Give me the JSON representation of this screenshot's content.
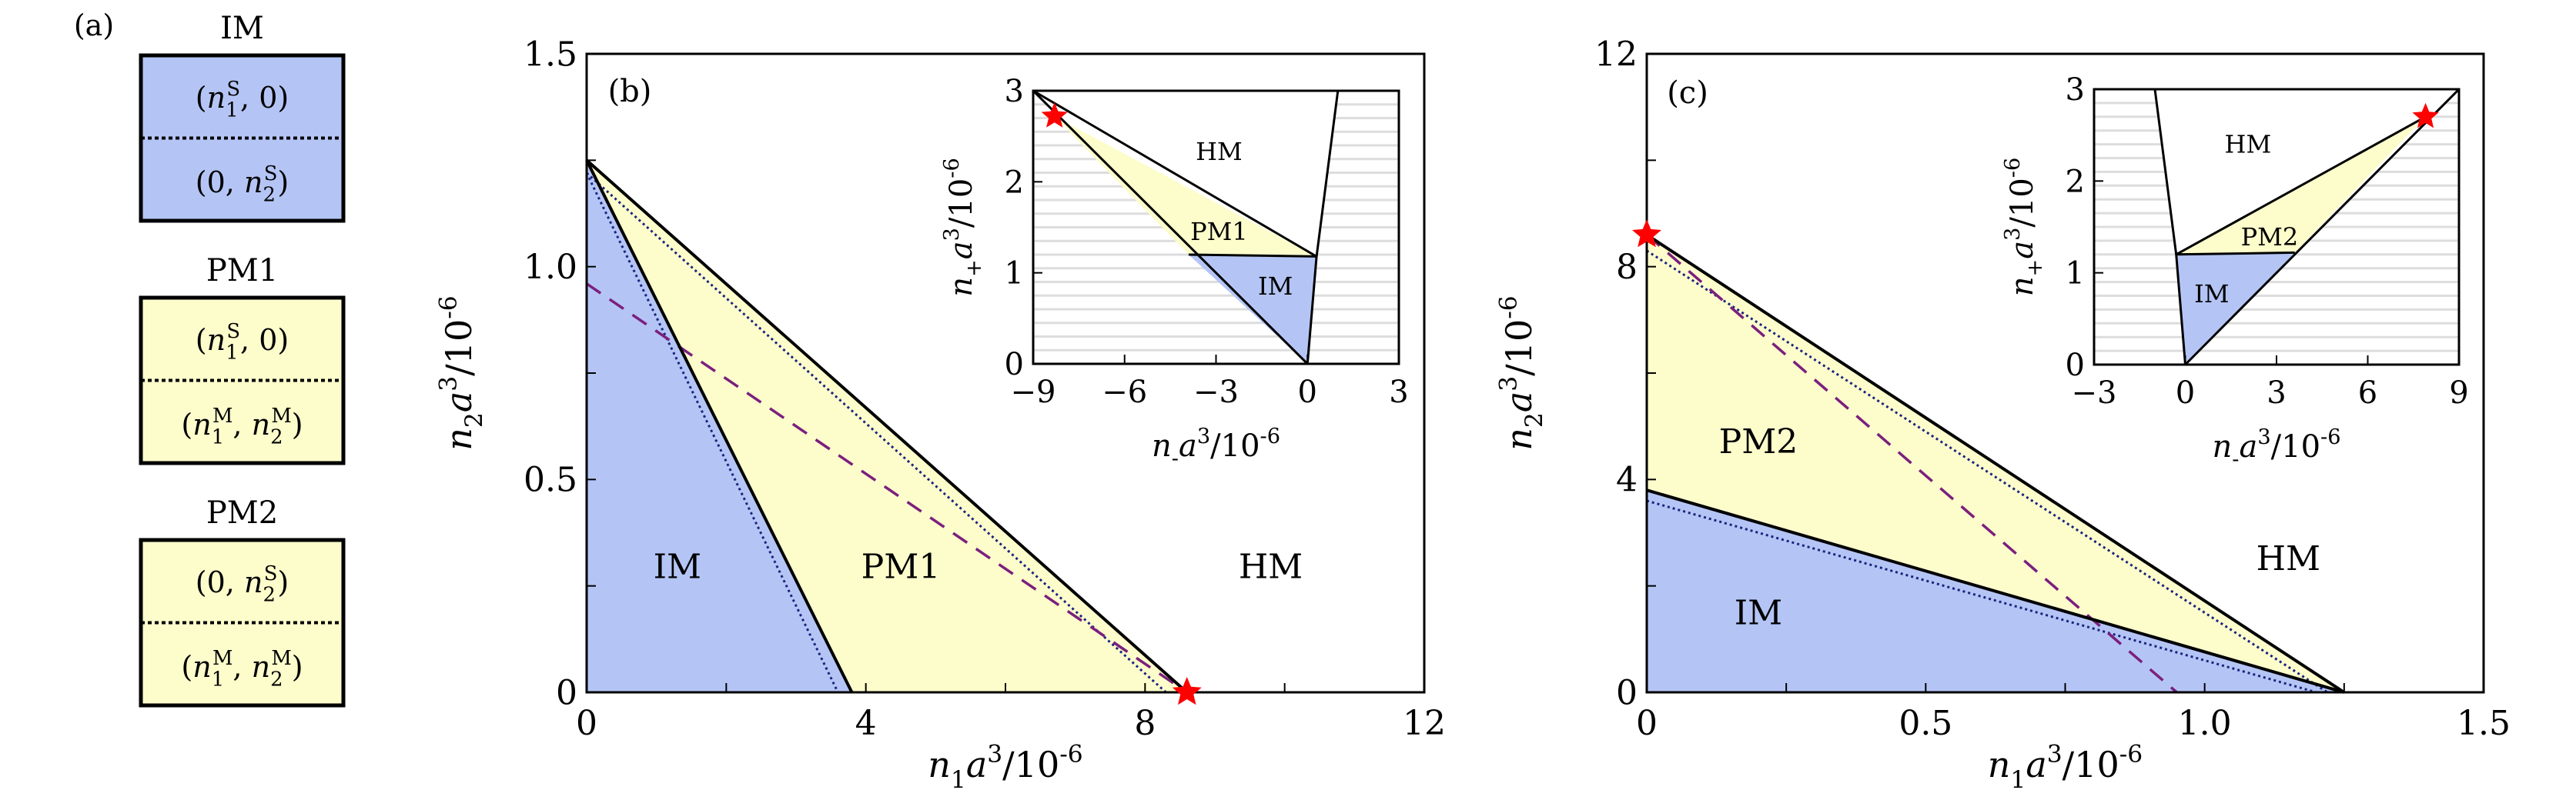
{
  "colors": {
    "im": "#b4c5f5",
    "pm": "#fdfdcc",
    "line": "#000000",
    "dotted": "#1a237e",
    "dashed": "#7b1f7e",
    "star": "#ff0000",
    "stripe": "#dddddd"
  },
  "panel_a": {
    "label": "(a)",
    "boxes": [
      {
        "title": "IM",
        "top": "(n_1^S, 0)",
        "bottom": "(0, n_2^S)",
        "fill": "im"
      },
      {
        "title": "PM1",
        "top": "(n_1^S, 0)",
        "bottom": "(n_1^M, n_2^M)",
        "fill": "pm"
      },
      {
        "title": "PM2",
        "top": "(0, n_2^S)",
        "bottom": "(n_1^M, n_2^M)",
        "fill": "pm"
      }
    ]
  },
  "chart_data": [
    {
      "panel_label": "(b)",
      "type": "line",
      "xlabel": "n_1a^3/10^{-6}",
      "ylabel": "n_2a^3/10^{-6}",
      "xlim": [
        0,
        12
      ],
      "ylim": [
        0,
        1.5
      ],
      "xticks": [
        "0",
        "4",
        "8",
        "12"
      ],
      "xtick_values": [
        0,
        4,
        8,
        12
      ],
      "xminor": [
        2,
        6,
        10
      ],
      "yticks": [
        "0",
        "0.5",
        "1.0",
        "1.5"
      ],
      "ytick_values": [
        0,
        0.5,
        1.0,
        1.5
      ],
      "yminor": [
        0.25,
        0.75,
        1.25
      ],
      "regions": [
        {
          "name": "IM",
          "fill": "im",
          "points": [
            [
              0,
              0
            ],
            [
              0,
              1.25
            ],
            [
              3.8,
              0
            ]
          ]
        },
        {
          "name": "PM1",
          "fill": "pm",
          "points": [
            [
              0,
              1.25
            ],
            [
              3.8,
              0
            ],
            [
              8.6,
              0
            ]
          ]
        }
      ],
      "region_labels": [
        {
          "text": "IM",
          "x": 1.3,
          "y": 0.29
        },
        {
          "text": "PM1",
          "x": 4.5,
          "y": 0.29
        },
        {
          "text": "HM",
          "x": 9.8,
          "y": 0.29
        }
      ],
      "lines": [
        {
          "style": "dotted",
          "points": [
            [
              0,
              1.22
            ],
            [
              3.6,
              0
            ]
          ]
        },
        {
          "style": "dotted",
          "points": [
            [
              0,
              1.22
            ],
            [
              8.3,
              0
            ]
          ]
        },
        {
          "style": "dashed",
          "points": [
            [
              0,
              0.96
            ],
            [
              8.6,
              0
            ]
          ]
        },
        {
          "style": "solid",
          "points": [
            [
              0,
              1.25
            ],
            [
              3.8,
              0
            ]
          ]
        },
        {
          "style": "solid",
          "points": [
            [
              0,
              1.25
            ],
            [
              8.6,
              0
            ]
          ]
        }
      ],
      "stars": [
        [
          8.6,
          0
        ]
      ],
      "inset": {
        "xlabel": "n_-a^3/10^{-6}",
        "ylabel": "n_+a^3/10^{-6}",
        "xlim": [
          -9,
          3
        ],
        "ylim": [
          0,
          3
        ],
        "xticks": [
          "−9",
          "−6",
          "−3",
          "0",
          "3"
        ],
        "xtick_values": [
          -9,
          -6,
          -3,
          0,
          3
        ],
        "yticks": [
          "0",
          "1",
          "2",
          "3"
        ],
        "ytick_values": [
          0,
          1,
          2,
          3
        ],
        "white_region": [
          [
            -9,
            3
          ],
          [
            1,
            3
          ],
          [
            0.3,
            1.18
          ],
          [
            0,
            0
          ]
        ],
        "regions": [
          {
            "name": "PM1",
            "fill": "pm",
            "points": [
              [
                -8.3,
                2.72
              ],
              [
                -3.9,
                1.2
              ],
              [
                0.3,
                1.18
              ]
            ]
          },
          {
            "name": "IM",
            "fill": "im",
            "points": [
              [
                -3.9,
                1.2
              ],
              [
                0.3,
                1.18
              ],
              [
                0,
                0
              ]
            ]
          }
        ],
        "region_labels": [
          {
            "text": "HM",
            "x": -2.9,
            "y": 2.34
          },
          {
            "text": "PM1",
            "x": -2.9,
            "y": 1.46
          },
          {
            "text": "IM",
            "x": -1.05,
            "y": 0.86
          }
        ],
        "lines": [
          {
            "style": "solid",
            "points": [
              [
                -9,
                3
              ],
              [
                0,
                0
              ]
            ]
          },
          {
            "style": "solid",
            "points": [
              [
                -9,
                3
              ],
              [
                0.3,
                1.18
              ]
            ]
          },
          {
            "style": "solid",
            "points": [
              [
                -3.9,
                1.2
              ],
              [
                0.3,
                1.18
              ]
            ]
          },
          {
            "style": "solid",
            "points": [
              [
                0,
                0
              ],
              [
                0.3,
                1.18
              ],
              [
                1,
                3
              ]
            ]
          }
        ],
        "stars": [
          [
            -8.3,
            2.72
          ]
        ]
      }
    },
    {
      "panel_label": "(c)",
      "type": "line",
      "xlabel": "n_1a^3/10^{-6}",
      "ylabel": "n_2a^3/10^{-6}",
      "xlim": [
        0,
        1.5
      ],
      "ylim": [
        0,
        12
      ],
      "xticks": [
        "0",
        "0.5",
        "1.0",
        "1.5"
      ],
      "xtick_values": [
        0,
        0.5,
        1.0,
        1.5
      ],
      "xminor": [
        0.25,
        0.75,
        1.25
      ],
      "yticks": [
        "0",
        "4",
        "8",
        "12"
      ],
      "ytick_values": [
        0,
        4,
        8,
        12
      ],
      "yminor": [
        2,
        6,
        10
      ],
      "regions": [
        {
          "name": "IM",
          "fill": "im",
          "points": [
            [
              0,
              0
            ],
            [
              0,
              3.8
            ],
            [
              1.25,
              0
            ]
          ]
        },
        {
          "name": "PM2",
          "fill": "pm",
          "points": [
            [
              0,
              3.8
            ],
            [
              0,
              8.6
            ],
            [
              1.25,
              0
            ]
          ]
        }
      ],
      "region_labels": [
        {
          "text": "PM2",
          "x": 0.2,
          "y": 4.67
        },
        {
          "text": "IM",
          "x": 0.2,
          "y": 1.45
        },
        {
          "text": "HM",
          "x": 1.15,
          "y": 2.47
        }
      ],
      "lines": [
        {
          "style": "dotted",
          "points": [
            [
              0,
              8.3
            ],
            [
              1.22,
              0
            ]
          ]
        },
        {
          "style": "dotted",
          "points": [
            [
              0,
              3.6
            ],
            [
              1.2,
              0
            ]
          ]
        },
        {
          "style": "dashed",
          "points": [
            [
              0,
              8.6
            ],
            [
              0.95,
              0
            ]
          ]
        },
        {
          "style": "solid",
          "points": [
            [
              0,
              3.8
            ],
            [
              1.25,
              0
            ]
          ]
        },
        {
          "style": "solid",
          "points": [
            [
              0,
              8.6
            ],
            [
              1.25,
              0
            ]
          ]
        }
      ],
      "stars": [
        [
          0,
          8.6
        ]
      ],
      "inset": {
        "xlabel": "n_-a^3/10^{-6}",
        "ylabel": "n_+a^3/10^{-6}",
        "xlim": [
          -3,
          9
        ],
        "ylim": [
          0,
          3
        ],
        "xticks": [
          "−3",
          "0",
          "3",
          "6",
          "9"
        ],
        "xtick_values": [
          -3,
          0,
          3,
          6,
          9
        ],
        "yticks": [
          "0",
          "1",
          "2",
          "3"
        ],
        "ytick_values": [
          0,
          1,
          2,
          3
        ],
        "white_region": [
          [
            -1,
            3
          ],
          [
            9,
            3
          ],
          [
            0,
            0
          ],
          [
            -0.3,
            1.2
          ]
        ],
        "regions": [
          {
            "name": "PM2",
            "fill": "pm",
            "points": [
              [
                -0.3,
                1.2
              ],
              [
                7.9,
                2.7
              ],
              [
                3.6,
                1.22
              ]
            ]
          },
          {
            "name": "IM",
            "fill": "im",
            "points": [
              [
                -0.3,
                1.2
              ],
              [
                3.6,
                1.22
              ],
              [
                0,
                0
              ]
            ]
          }
        ],
        "region_labels": [
          {
            "text": "HM",
            "x": 2.06,
            "y": 2.41
          },
          {
            "text": "PM2",
            "x": 2.77,
            "y": 1.4
          },
          {
            "text": "IM",
            "x": 0.87,
            "y": 0.78
          }
        ],
        "lines": [
          {
            "style": "solid",
            "points": [
              [
                -1,
                3
              ],
              [
                -0.3,
                1.2
              ],
              [
                0,
                0
              ]
            ]
          },
          {
            "style": "solid",
            "points": [
              [
                0,
                0
              ],
              [
                9,
                3
              ]
            ]
          },
          {
            "style": "solid",
            "points": [
              [
                -0.3,
                1.2
              ],
              [
                7.9,
                2.7
              ]
            ]
          },
          {
            "style": "solid",
            "points": [
              [
                -0.3,
                1.2
              ],
              [
                3.6,
                1.22
              ]
            ]
          }
        ],
        "stars": [
          [
            7.9,
            2.7
          ]
        ]
      }
    }
  ]
}
